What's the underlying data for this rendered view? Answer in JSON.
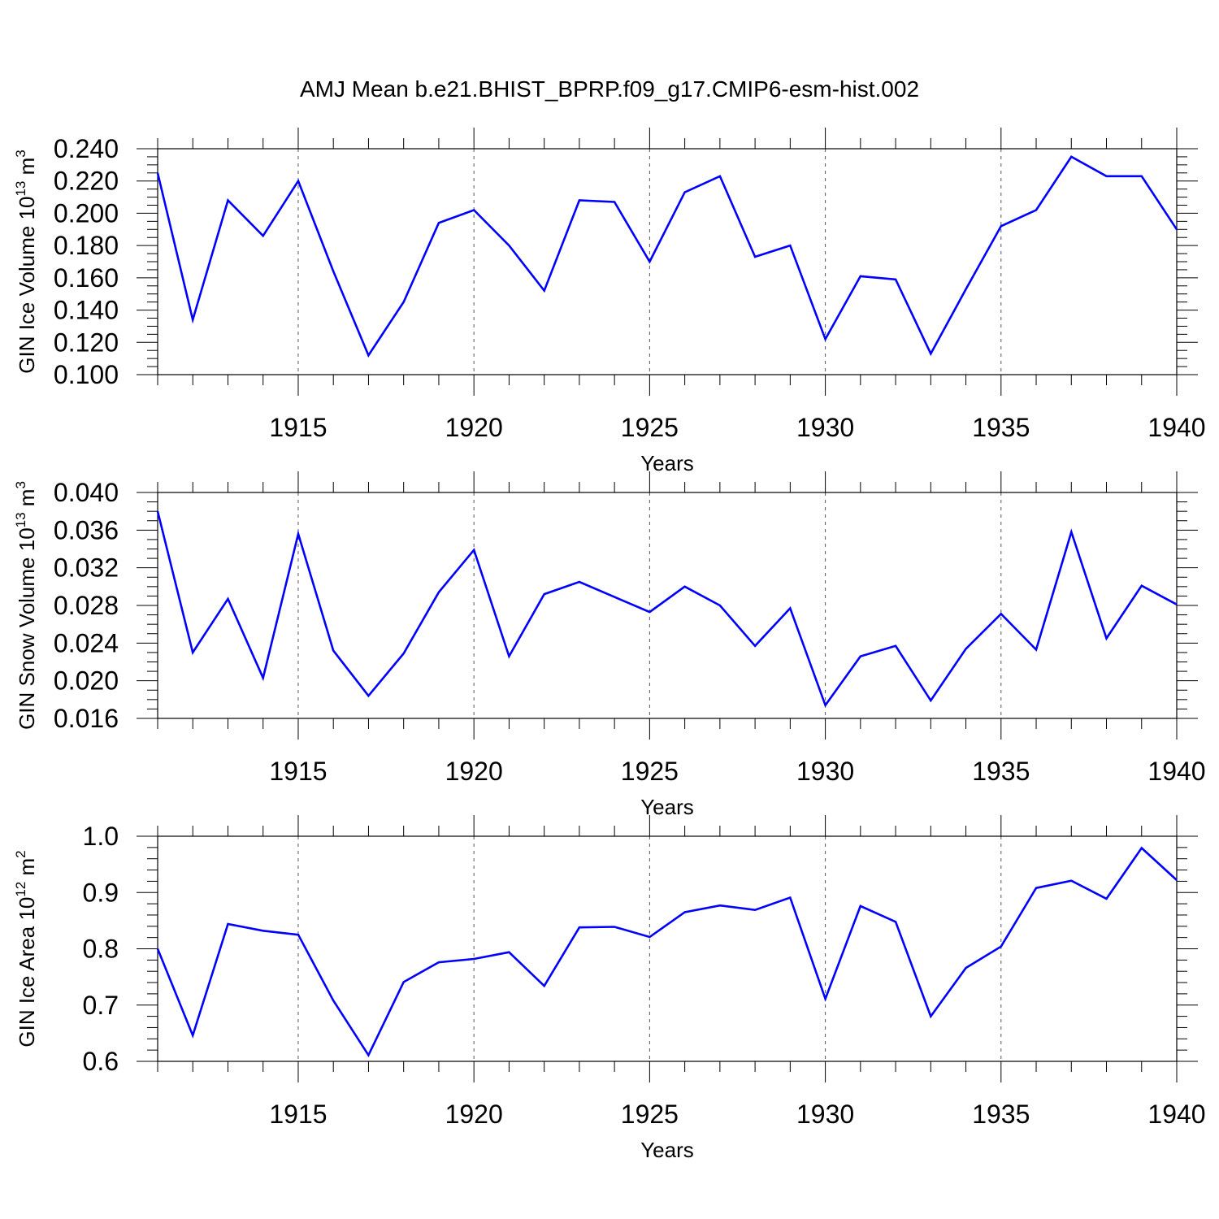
{
  "title": "AMJ Mean b.e21.BHIST_BPRP.f09_g17.CMIP6-esm-hist.002",
  "chart_data": [
    {
      "type": "line",
      "xlabel": "Years",
      "ylabel_parts": {
        "base": "GIN Ice Volume 10",
        "exp": "13",
        "unit": " m",
        "unit_exp": "3"
      },
      "x": [
        1911,
        1912,
        1913,
        1914,
        1915,
        1916,
        1917,
        1918,
        1919,
        1920,
        1921,
        1922,
        1923,
        1924,
        1925,
        1926,
        1927,
        1928,
        1929,
        1930,
        1931,
        1932,
        1933,
        1934,
        1935,
        1936,
        1937,
        1938,
        1939,
        1940
      ],
      "values": [
        0.225,
        0.134,
        0.208,
        0.186,
        0.22,
        0.164,
        0.112,
        0.145,
        0.194,
        0.202,
        0.18,
        0.152,
        0.208,
        0.207,
        0.17,
        0.213,
        0.223,
        0.173,
        0.18,
        0.122,
        0.161,
        0.159,
        0.113,
        0.153,
        0.192,
        0.202,
        0.235,
        0.223,
        0.223,
        0.19
      ],
      "xlim": [
        1911,
        1940
      ],
      "ylim": [
        0.1,
        0.24
      ],
      "x_ticks": [
        1915,
        1920,
        1925,
        1930,
        1935,
        1940
      ],
      "x_tick_labels": [
        "1915",
        "1920",
        "1925",
        "1930",
        "1935",
        "1940"
      ],
      "y_ticks": [
        0.1,
        0.12,
        0.14,
        0.16,
        0.18,
        0.2,
        0.22,
        0.24
      ],
      "y_tick_labels": [
        "0.100",
        "0.120",
        "0.140",
        "0.160",
        "0.180",
        "0.200",
        "0.220",
        "0.240"
      ],
      "y_minor_step": 0.005,
      "grid": "dashed vertical at major x ticks",
      "line_color": "#0000ff"
    },
    {
      "type": "line",
      "xlabel": "Years",
      "ylabel_parts": {
        "base": "GIN Snow Volume 10",
        "exp": "13",
        "unit": " m",
        "unit_exp": "3"
      },
      "x": [
        1911,
        1912,
        1913,
        1914,
        1915,
        1916,
        1917,
        1918,
        1919,
        1920,
        1921,
        1922,
        1923,
        1924,
        1925,
        1926,
        1927,
        1928,
        1929,
        1930,
        1931,
        1932,
        1933,
        1934,
        1935,
        1936,
        1937,
        1938,
        1939,
        1940
      ],
      "values": [
        0.038,
        0.023,
        0.0287,
        0.0203,
        0.0356,
        0.0232,
        0.0184,
        0.0229,
        0.0294,
        0.0339,
        0.0226,
        0.0292,
        0.0305,
        0.0289,
        0.0273,
        0.03,
        0.028,
        0.0237,
        0.0277,
        0.0174,
        0.0226,
        0.0237,
        0.0179,
        0.0234,
        0.0271,
        0.0233,
        0.0358,
        0.0245,
        0.0301,
        0.0281
      ],
      "xlim": [
        1911,
        1940
      ],
      "ylim": [
        0.016,
        0.04
      ],
      "x_ticks": [
        1915,
        1920,
        1925,
        1930,
        1935,
        1940
      ],
      "x_tick_labels": [
        "1915",
        "1920",
        "1925",
        "1930",
        "1935",
        "1940"
      ],
      "y_ticks": [
        0.016,
        0.02,
        0.024,
        0.028,
        0.032,
        0.036,
        0.04
      ],
      "y_tick_labels": [
        "0.016",
        "0.020",
        "0.024",
        "0.028",
        "0.032",
        "0.036",
        "0.040"
      ],
      "y_minor_step": 0.001,
      "grid": "dashed vertical at major x ticks",
      "line_color": "#0000ff"
    },
    {
      "type": "line",
      "xlabel": "Years",
      "ylabel_parts": {
        "base": "GIN Ice Area 10",
        "exp": "12",
        "unit": " m",
        "unit_exp": "2"
      },
      "x": [
        1911,
        1912,
        1913,
        1914,
        1915,
        1916,
        1917,
        1918,
        1919,
        1920,
        1921,
        1922,
        1923,
        1924,
        1925,
        1926,
        1927,
        1928,
        1929,
        1930,
        1931,
        1932,
        1933,
        1934,
        1935,
        1936,
        1937,
        1938,
        1939,
        1940
      ],
      "values": [
        0.8,
        0.646,
        0.844,
        0.832,
        0.825,
        0.708,
        0.611,
        0.741,
        0.776,
        0.782,
        0.794,
        0.734,
        0.838,
        0.839,
        0.821,
        0.865,
        0.877,
        0.869,
        0.891,
        0.711,
        0.876,
        0.848,
        0.68,
        0.766,
        0.804,
        0.908,
        0.921,
        0.889,
        0.979,
        0.922
      ],
      "xlim": [
        1911,
        1940
      ],
      "ylim": [
        0.6,
        1.0
      ],
      "x_ticks": [
        1915,
        1920,
        1925,
        1930,
        1935,
        1940
      ],
      "x_tick_labels": [
        "1915",
        "1920",
        "1925",
        "1930",
        "1935",
        "1940"
      ],
      "y_ticks": [
        0.6,
        0.7,
        0.8,
        0.9,
        1.0
      ],
      "y_tick_labels": [
        "0.6",
        "0.7",
        "0.8",
        "0.9",
        "1.0"
      ],
      "y_minor_step": 0.02,
      "grid": "dashed vertical at major x ticks",
      "line_color": "#0000ff"
    }
  ]
}
